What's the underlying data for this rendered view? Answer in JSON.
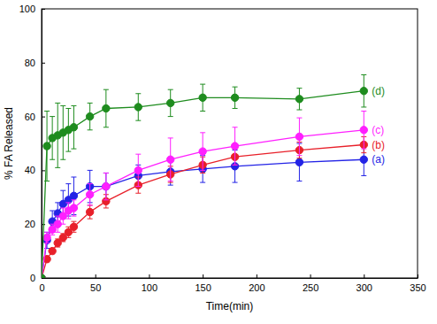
{
  "chart_data": {
    "type": "line",
    "x_label": "Time(min)",
    "y_label": "% FA Released",
    "x": [
      0,
      5,
      10,
      15,
      20,
      25,
      30,
      45,
      60,
      90,
      120,
      150,
      180,
      240,
      300
    ],
    "xlim": [
      0,
      350
    ],
    "xticks": [
      0,
      50,
      100,
      150,
      200,
      250,
      300,
      350
    ],
    "ylim": [
      0,
      100
    ],
    "yticks": [
      0,
      20,
      40,
      60,
      80,
      100
    ],
    "grid": false,
    "marker": "circle",
    "series": [
      {
        "name": "(a)",
        "color": "#2323e6",
        "values": [
          0,
          14,
          21,
          24,
          27.5,
          29,
          30.5,
          34,
          34,
          38,
          39.5,
          40.5,
          41.5,
          43,
          44
        ],
        "errors": [
          0,
          3,
          4,
          4,
          5,
          6,
          7,
          6,
          5,
          4,
          5,
          5,
          6,
          7,
          6
        ]
      },
      {
        "name": "(b)",
        "color": "#e8202a",
        "values": [
          0,
          7,
          10,
          13,
          15,
          17,
          19,
          24.5,
          28.5,
          34.5,
          38.5,
          42,
          45,
          47.5,
          49.5
        ],
        "errors": [
          0,
          1,
          1,
          1.5,
          1.5,
          2,
          2,
          2.5,
          2.5,
          3,
          3,
          3,
          3,
          3,
          3
        ]
      },
      {
        "name": "(c)",
        "color": "#ff1fff",
        "values": [
          0,
          15,
          18,
          20,
          23,
          25,
          26,
          31,
          34,
          40,
          44,
          47,
          49,
          52.5,
          55
        ],
        "errors": [
          0,
          2,
          2,
          3,
          3,
          3,
          3,
          4,
          5,
          6,
          8,
          7,
          7,
          7,
          7
        ]
      },
      {
        "name": "(d)",
        "color": "#1e8c1e",
        "values": [
          0,
          49,
          52,
          53,
          54,
          55,
          56,
          60,
          63,
          63.5,
          65,
          67,
          67,
          66.5,
          69.5
        ],
        "errors": [
          0,
          13,
          8,
          12,
          10,
          8,
          8,
          5,
          7,
          5,
          5,
          5,
          4,
          4,
          6
        ]
      }
    ]
  }
}
